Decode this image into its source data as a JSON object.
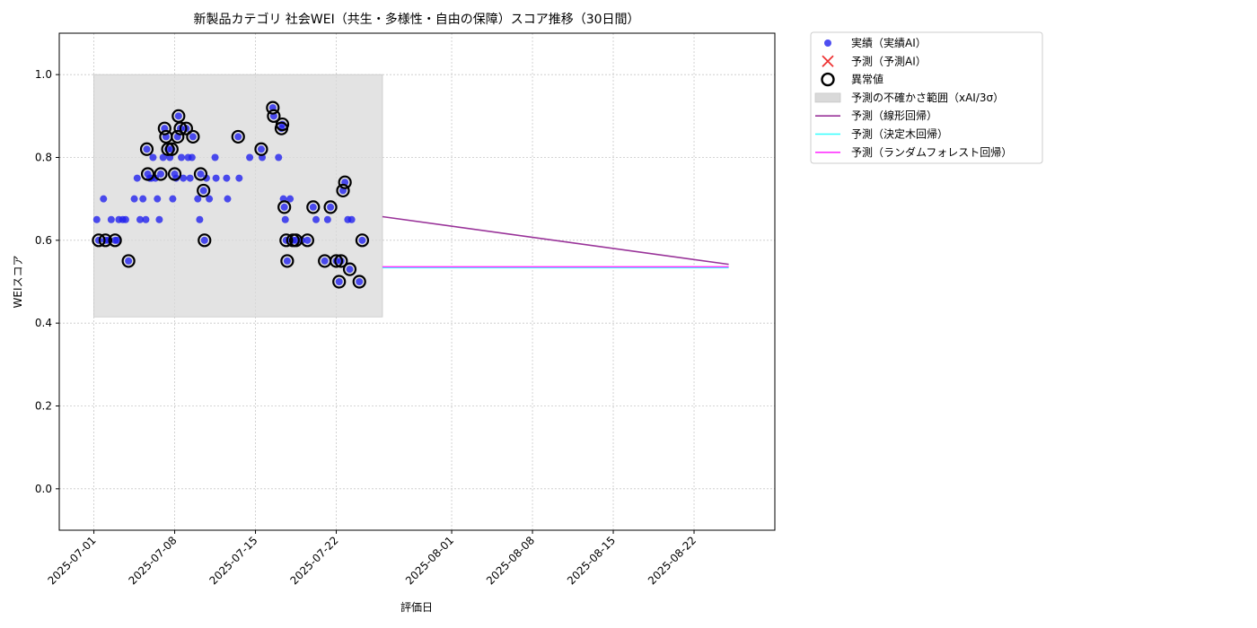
{
  "chart_data": {
    "type": "scatter",
    "title": "新製品カテゴリ 社会WEI（共生・多様性・自由の保障）スコア推移（30日間）",
    "xlabel": "評価日",
    "ylabel": "WEIスコア",
    "xlim": [
      "2025-06-28",
      "2025-08-29"
    ],
    "ylim": [
      -0.1,
      1.1
    ],
    "x_ticks": [
      "2025-07-01",
      "2025-07-08",
      "2025-07-15",
      "2025-07-22",
      "2025-08-01",
      "2025-08-08",
      "2025-08-15",
      "2025-08-22"
    ],
    "y_ticks": [
      "0.0",
      "0.2",
      "0.4",
      "0.6",
      "0.8",
      "1.0"
    ],
    "grid": true,
    "legend_position": "outside-upper-right",
    "colors": {
      "actual": "#2222ee",
      "predicted": "#ee3333",
      "anomaly": "#000000",
      "band": "#d9d9d9",
      "linear": "#993399",
      "tree": "#33ffff",
      "forest": "#ff33ff"
    },
    "legend": {
      "actual": "実績（実績AI）",
      "predicted": "予測（予測AI）",
      "anomaly": "異常値",
      "band": "予測の不確かさ範囲（xAI/3σ）",
      "linear": "予測（線形回帰）",
      "tree": "予測（決定木回帰）",
      "forest": "予測（ランダムフォレスト回帰）"
    },
    "uncertainty_band": {
      "x": [
        "2025-07-01",
        "2025-07-26"
      ],
      "y": [
        0.415,
        1.0
      ]
    },
    "actual_points": [
      [
        "2025-07-01 06:00",
        0.65
      ],
      [
        "2025-07-01 10:00",
        0.6
      ],
      [
        "2025-07-01 20:00",
        0.7
      ],
      [
        "2025-07-02 00:00",
        0.6
      ],
      [
        "2025-07-02 06:00",
        0.6
      ],
      [
        "2025-07-02 12:00",
        0.65
      ],
      [
        "2025-07-02 20:00",
        0.6
      ],
      [
        "2025-07-03 00:00",
        0.6
      ],
      [
        "2025-07-03 04:00",
        0.65
      ],
      [
        "2025-07-03 12:00",
        0.65
      ],
      [
        "2025-07-03 18:00",
        0.65
      ],
      [
        "2025-07-04 00:00",
        0.55
      ],
      [
        "2025-07-04 12:00",
        0.7
      ],
      [
        "2025-07-04 18:00",
        0.75
      ],
      [
        "2025-07-05 00:00",
        0.65
      ],
      [
        "2025-07-05 06:00",
        0.7
      ],
      [
        "2025-07-05 12:00",
        0.65
      ],
      [
        "2025-07-05 14:00",
        0.82
      ],
      [
        "2025-07-05 16:00",
        0.76
      ],
      [
        "2025-07-05 20:00",
        0.75
      ],
      [
        "2025-07-06 00:00",
        0.75
      ],
      [
        "2025-07-06 03:00",
        0.8
      ],
      [
        "2025-07-06 08:00",
        0.75
      ],
      [
        "2025-07-06 12:00",
        0.7
      ],
      [
        "2025-07-06 16:00",
        0.65
      ],
      [
        "2025-07-06 19:00",
        0.76
      ],
      [
        "2025-07-07 00:00",
        0.8
      ],
      [
        "2025-07-07 03:00",
        0.87
      ],
      [
        "2025-07-07 06:00",
        0.85
      ],
      [
        "2025-07-07 10:00",
        0.82
      ],
      [
        "2025-07-07 14:00",
        0.8
      ],
      [
        "2025-07-07 18:00",
        0.82
      ],
      [
        "2025-07-07 20:00",
        0.7
      ],
      [
        "2025-07-08 00:00",
        0.76
      ],
      [
        "2025-07-08 03:00",
        0.75
      ],
      [
        "2025-07-08 06:00",
        0.85
      ],
      [
        "2025-07-08 08:00",
        0.9
      ],
      [
        "2025-07-08 12:00",
        0.87
      ],
      [
        "2025-07-08 14:00",
        0.8
      ],
      [
        "2025-07-08 18:00",
        0.75
      ],
      [
        "2025-07-09 00:00",
        0.87
      ],
      [
        "2025-07-09 04:00",
        0.8
      ],
      [
        "2025-07-09 08:00",
        0.75
      ],
      [
        "2025-07-09 12:00",
        0.8
      ],
      [
        "2025-07-09 14:00",
        0.85
      ],
      [
        "2025-07-10 00:00",
        0.7
      ],
      [
        "2025-07-10 04:00",
        0.65
      ],
      [
        "2025-07-10 06:00",
        0.76
      ],
      [
        "2025-07-10 12:00",
        0.72
      ],
      [
        "2025-07-10 14:00",
        0.6
      ],
      [
        "2025-07-10 18:00",
        0.75
      ],
      [
        "2025-07-11 00:00",
        0.7
      ],
      [
        "2025-07-11 12:00",
        0.8
      ],
      [
        "2025-07-11 14:00",
        0.75
      ],
      [
        "2025-07-12 12:00",
        0.75
      ],
      [
        "2025-07-12 14:00",
        0.7
      ],
      [
        "2025-07-13 12:00",
        0.85
      ],
      [
        "2025-07-13 14:00",
        0.75
      ],
      [
        "2025-07-14 12:00",
        0.8
      ],
      [
        "2025-07-15 12:00",
        0.82
      ],
      [
        "2025-07-15 14:00",
        0.8
      ],
      [
        "2025-07-16 12:00",
        0.92
      ],
      [
        "2025-07-16 14:00",
        0.9
      ],
      [
        "2025-07-17 00:00",
        0.8
      ],
      [
        "2025-07-17 06:00",
        0.87
      ],
      [
        "2025-07-17 08:00",
        0.88
      ],
      [
        "2025-07-17 10:00",
        0.7
      ],
      [
        "2025-07-17 12:00",
        0.68
      ],
      [
        "2025-07-17 14:00",
        0.65
      ],
      [
        "2025-07-17 16:00",
        0.6
      ],
      [
        "2025-07-17 18:00",
        0.55
      ],
      [
        "2025-07-18 00:00",
        0.7
      ],
      [
        "2025-07-18 06:00",
        0.6
      ],
      [
        "2025-07-18 12:00",
        0.6
      ],
      [
        "2025-07-19 00:00",
        0.6
      ],
      [
        "2025-07-19 12:00",
        0.6
      ],
      [
        "2025-07-20 00:00",
        0.68
      ],
      [
        "2025-07-20 06:00",
        0.65
      ],
      [
        "2025-07-21 00:00",
        0.55
      ],
      [
        "2025-07-21 06:00",
        0.65
      ],
      [
        "2025-07-21 12:00",
        0.68
      ],
      [
        "2025-07-22 00:00",
        0.55
      ],
      [
        "2025-07-22 06:00",
        0.5
      ],
      [
        "2025-07-22 10:00",
        0.55
      ],
      [
        "2025-07-22 14:00",
        0.72
      ],
      [
        "2025-07-22 18:00",
        0.74
      ],
      [
        "2025-07-23 00:00",
        0.65
      ],
      [
        "2025-07-23 04:00",
        0.53
      ],
      [
        "2025-07-23 08:00",
        0.65
      ],
      [
        "2025-07-24 00:00",
        0.5
      ],
      [
        "2025-07-24 06:00",
        0.6
      ]
    ],
    "anomaly_points": [
      [
        "2025-07-01 10:00",
        0.6
      ],
      [
        "2025-07-02 00:00",
        0.6
      ],
      [
        "2025-07-02 20:00",
        0.6
      ],
      [
        "2025-07-04 00:00",
        0.55
      ],
      [
        "2025-07-05 14:00",
        0.82
      ],
      [
        "2025-07-05 16:00",
        0.76
      ],
      [
        "2025-07-06 19:00",
        0.76
      ],
      [
        "2025-07-07 03:00",
        0.87
      ],
      [
        "2025-07-07 06:00",
        0.85
      ],
      [
        "2025-07-07 10:00",
        0.82
      ],
      [
        "2025-07-07 18:00",
        0.82
      ],
      [
        "2025-07-08 00:00",
        0.76
      ],
      [
        "2025-07-08 06:00",
        0.85
      ],
      [
        "2025-07-08 08:00",
        0.9
      ],
      [
        "2025-07-08 12:00",
        0.87
      ],
      [
        "2025-07-09 00:00",
        0.87
      ],
      [
        "2025-07-09 14:00",
        0.85
      ],
      [
        "2025-07-10 06:00",
        0.76
      ],
      [
        "2025-07-10 12:00",
        0.72
      ],
      [
        "2025-07-10 14:00",
        0.6
      ],
      [
        "2025-07-13 12:00",
        0.85
      ],
      [
        "2025-07-15 12:00",
        0.82
      ],
      [
        "2025-07-16 12:00",
        0.92
      ],
      [
        "2025-07-16 14:00",
        0.9
      ],
      [
        "2025-07-17 06:00",
        0.87
      ],
      [
        "2025-07-17 08:00",
        0.88
      ],
      [
        "2025-07-17 12:00",
        0.68
      ],
      [
        "2025-07-17 16:00",
        0.6
      ],
      [
        "2025-07-17 18:00",
        0.55
      ],
      [
        "2025-07-18 06:00",
        0.6
      ],
      [
        "2025-07-18 12:00",
        0.6
      ],
      [
        "2025-07-19 12:00",
        0.6
      ],
      [
        "2025-07-20 00:00",
        0.68
      ],
      [
        "2025-07-21 00:00",
        0.55
      ],
      [
        "2025-07-21 12:00",
        0.68
      ],
      [
        "2025-07-22 00:00",
        0.55
      ],
      [
        "2025-07-22 06:00",
        0.5
      ],
      [
        "2025-07-22 10:00",
        0.55
      ],
      [
        "2025-07-22 14:00",
        0.72
      ],
      [
        "2025-07-22 18:00",
        0.74
      ],
      [
        "2025-07-23 04:00",
        0.53
      ],
      [
        "2025-07-24 00:00",
        0.5
      ],
      [
        "2025-07-24 06:00",
        0.6
      ]
    ],
    "series": [
      {
        "name": "予測（線形回帰）",
        "key": "linear",
        "x": [
          "2025-07-26",
          "2025-08-25"
        ],
        "y": [
          0.657,
          0.542
        ]
      },
      {
        "name": "予測（決定木回帰）",
        "key": "tree",
        "x": [
          "2025-07-26",
          "2025-08-25"
        ],
        "y": [
          0.534,
          0.534
        ]
      },
      {
        "name": "予測（ランダムフォレスト回帰）",
        "key": "forest",
        "x": [
          "2025-07-26",
          "2025-08-25"
        ],
        "y": [
          0.536,
          0.536
        ]
      }
    ]
  }
}
